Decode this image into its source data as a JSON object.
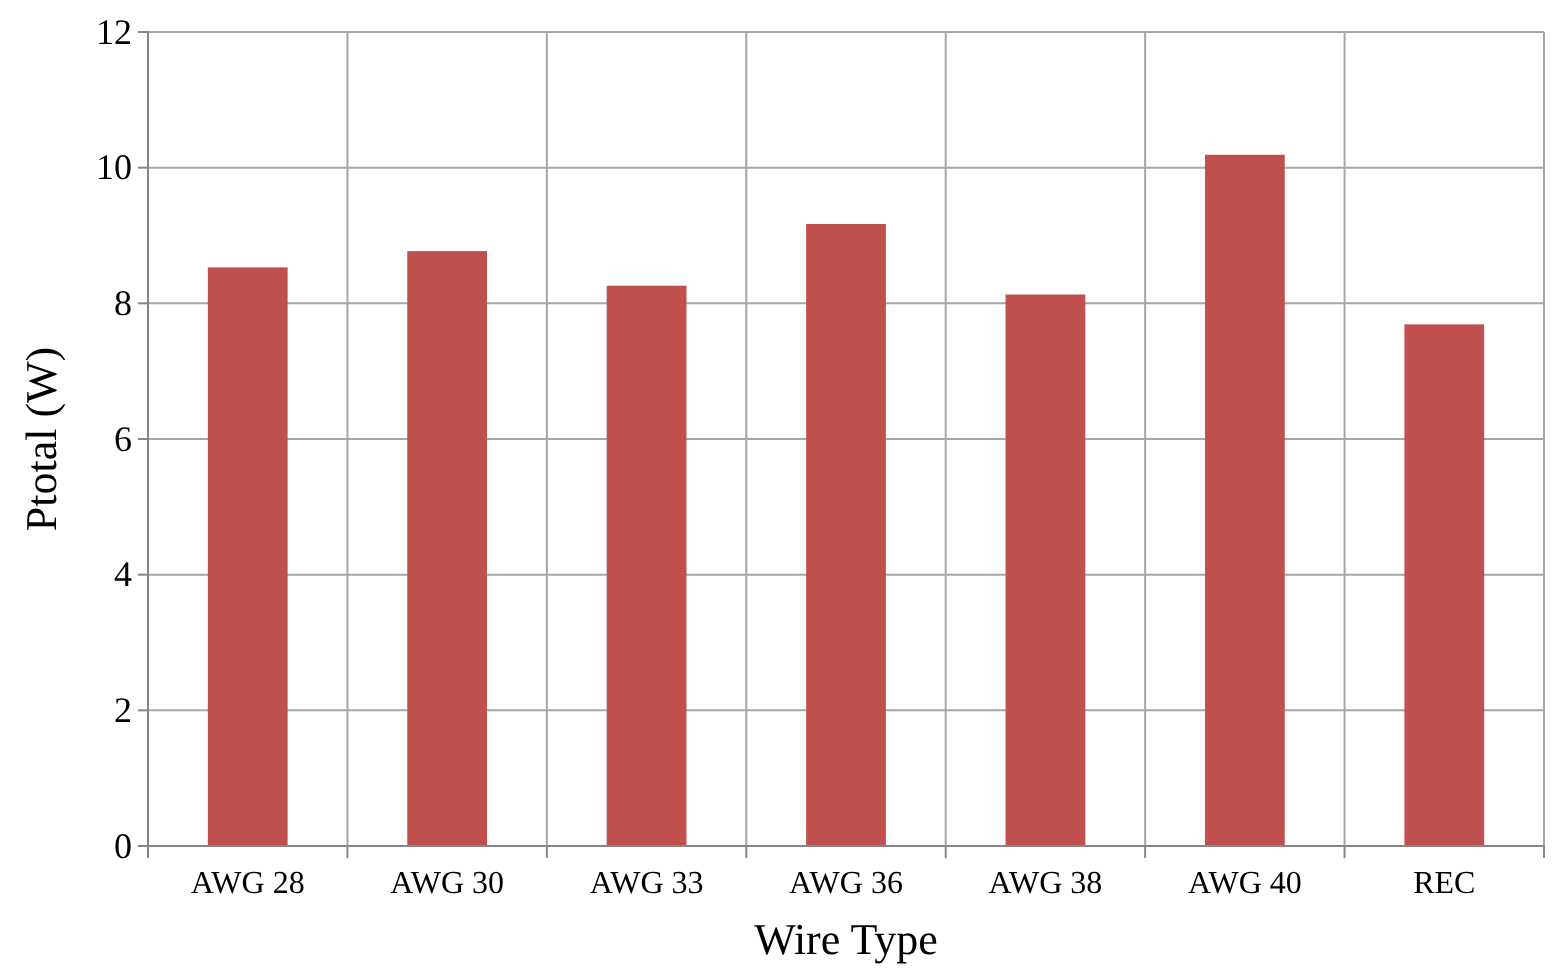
{
  "chart_data": {
    "type": "bar",
    "xlabel": "Wire Type",
    "ylabel": "Ptotal (W)",
    "categories": [
      "AWG 28",
      "AWG 30",
      "AWG 33",
      "AWG 36",
      "AWG 38",
      "AWG 40",
      "REC"
    ],
    "values": [
      8.53,
      8.77,
      8.26,
      9.17,
      8.13,
      10.19,
      7.69
    ],
    "color": "#c0504d",
    "ylim": [
      0,
      12
    ],
    "yticks": [
      0,
      2,
      4,
      6,
      8,
      10,
      12
    ],
    "grid": true
  }
}
